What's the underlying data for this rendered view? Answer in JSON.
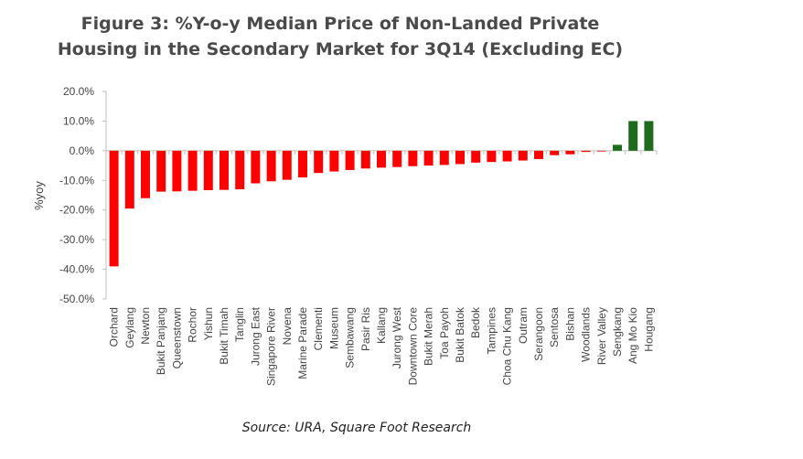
{
  "title_line1": "Figure 3: %Y-o-y Median Price of Non-Landed Private",
  "title_line2": "Housing in the Secondary Market for 3Q14 (Excluding EC)",
  "source": "Source: URA, Square Foot Research",
  "colors": {
    "negative": "#ff0000",
    "positive": "#1e6b1e",
    "axis": "#bfbfbf",
    "text": "#444444"
  },
  "chart_data": {
    "type": "bar",
    "title": "Figure 3: %Y-o-y Median Price of Non-Landed Private Housing in the Secondary Market for 3Q14 (Excluding EC)",
    "xlabel": "",
    "ylabel": "%yoy",
    "ylim": [
      -50,
      20
    ],
    "yticks": [
      "20.0%",
      "10.0%",
      "0.0%",
      "-10.0%",
      "-20.0%",
      "-30.0%",
      "-40.0%",
      "-50.0%"
    ],
    "ytick_values": [
      20,
      10,
      0,
      -10,
      -20,
      -30,
      -40,
      -50
    ],
    "grid": false,
    "categories": [
      "Orchard",
      "Geylang",
      "Newton",
      "Bukit Panjang",
      "Queenstown",
      "Rochor",
      "Yishun",
      "Bukit Timah",
      "Tanglin",
      "Jurong East",
      "Singapore River",
      "Novena",
      "Marine Parade",
      "Clementi",
      "Museum",
      "Sembawang",
      "Pasir Ris",
      "Kallang",
      "Jurong West",
      "Downtown Core",
      "Bukit Merah",
      "Toa Payoh",
      "Bukit Batok",
      "Bedok",
      "Tampines",
      "Choa Chu Kang",
      "Outram",
      "Serangoon",
      "Sentosa",
      "Bishan",
      "Woodlands",
      "River Valley",
      "Sengkang",
      "Ang Mo Kio",
      "Hougang"
    ],
    "values": [
      -39.0,
      -19.5,
      -16.0,
      -13.8,
      -13.7,
      -13.5,
      -13.3,
      -13.2,
      -13.0,
      -11.0,
      -10.3,
      -9.8,
      -9.0,
      -7.5,
      -7.0,
      -6.5,
      -6.0,
      -5.7,
      -5.5,
      -5.2,
      -5.0,
      -4.8,
      -4.5,
      -4.0,
      -3.8,
      -3.6,
      -3.3,
      -2.8,
      -1.5,
      -1.2,
      -0.4,
      -0.2,
      2.0,
      10.0,
      10.0
    ]
  }
}
